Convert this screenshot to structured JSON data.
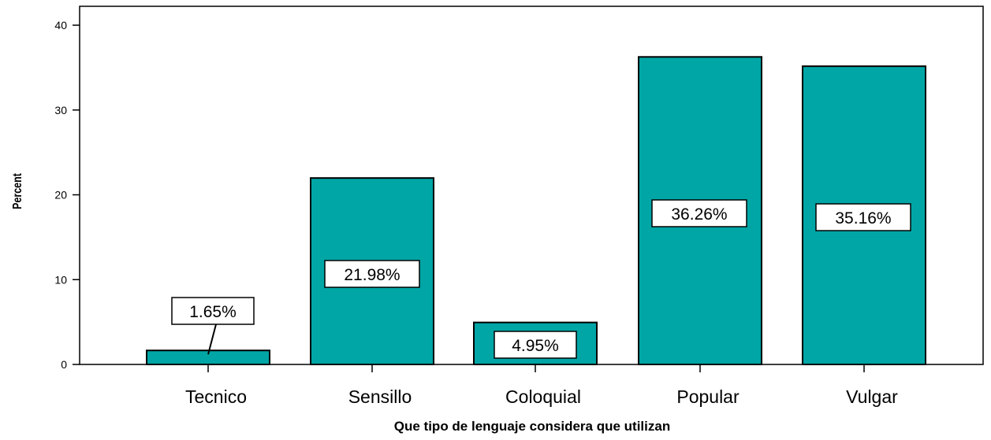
{
  "chart_data": {
    "type": "bar",
    "title": "",
    "xlabel": "Que tipo de lenguaje considera que utilizan",
    "ylabel": "Percent",
    "categories": [
      "Tecnico",
      "Sensillo",
      "Coloquial",
      "Popular",
      "Vulgar"
    ],
    "values": [
      1.65,
      21.98,
      4.95,
      36.26,
      35.16
    ],
    "data_labels": [
      "1.65%",
      "21.98%",
      "4.95%",
      "36.26%",
      "35.16%"
    ],
    "ylim": [
      0,
      40
    ],
    "yticks": [
      "0",
      "10",
      "20",
      "30",
      "40"
    ],
    "grid": false,
    "legend": "none",
    "bar_color": "#00A6A6",
    "bar_edge_color": "#000000"
  }
}
